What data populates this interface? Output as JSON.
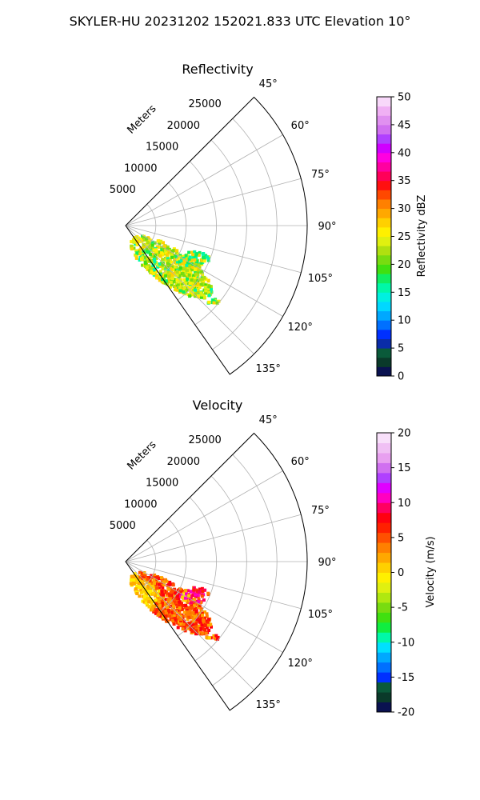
{
  "suptitle": "SKYLER-HU  20231202  152021.833 UTC Elevation 10°",
  "chart_data": [
    {
      "type": "heatmap",
      "projection": "polar-sector",
      "title": "Reflectivity",
      "radial_label": "Meters",
      "radial_ticks": [
        5000,
        10000,
        15000,
        20000,
        25000
      ],
      "radial_range": [
        0,
        30000
      ],
      "angular_ticks": [
        "45°",
        "60°",
        "75°",
        "90°",
        "105°",
        "120°",
        "135°"
      ],
      "angular_range_deg": [
        45,
        145
      ],
      "grid": true,
      "colorbar": {
        "label": "Reflectivity dBZ",
        "range": [
          0,
          50
        ],
        "ticks": [
          0,
          5,
          10,
          15,
          20,
          25,
          30,
          35,
          40,
          45,
          50
        ],
        "colors": [
          "#0a1250",
          "#0a3a2a",
          "#0a5a3a",
          "#0a2ca8",
          "#0030ff",
          "#0070ff",
          "#00a8ff",
          "#00d8ff",
          "#00f0e0",
          "#00f8a8",
          "#10ee60",
          "#40e010",
          "#78dc10",
          "#b0e010",
          "#e0f010",
          "#fff000",
          "#ffd000",
          "#ffa800",
          "#ff8000",
          "#ff4800",
          "#ff1010",
          "#ff0058",
          "#ff00a0",
          "#ff00e0",
          "#d000ff",
          "#b040ff",
          "#d070f0",
          "#e090f0",
          "#f0b0f4",
          "#f8d8fa"
        ]
      },
      "echo_summary": "main cluster about 25–30 dBZ (yellow-green) centered near bearing 112°, range 8–17 km, with scattered weaker cyan/green echoes near bearings 100–105° and 120°"
    },
    {
      "type": "heatmap",
      "projection": "polar-sector",
      "title": "Velocity",
      "radial_label": "Meters",
      "radial_ticks": [
        5000,
        10000,
        15000,
        20000,
        25000
      ],
      "radial_range": [
        0,
        30000
      ],
      "angular_ticks": [
        "45°",
        "60°",
        "75°",
        "90°",
        "105°",
        "120°",
        "135°"
      ],
      "angular_range_deg": [
        45,
        145
      ],
      "grid": true,
      "colorbar": {
        "label": "Velocity (m/s)",
        "range": [
          -20,
          20
        ],
        "ticks": [
          -20,
          -15,
          -10,
          -5,
          0,
          5,
          10,
          15,
          20
        ],
        "colors": [
          "#0a1250",
          "#0a3a2a",
          "#0a5a3a",
          "#0030ff",
          "#0070ff",
          "#00a8ff",
          "#00e0ff",
          "#00f8a8",
          "#10ee40",
          "#40e010",
          "#78dc10",
          "#b0e810",
          "#e0f010",
          "#fff000",
          "#ffd000",
          "#ffa800",
          "#ff8000",
          "#ff5000",
          "#ff2000",
          "#ff0010",
          "#ff0060",
          "#ff00c0",
          "#e000ff",
          "#b040ff",
          "#d070f0",
          "#e8a0f0",
          "#f0c0f4",
          "#f8e0fa"
        ]
      },
      "echo_summary": "cluster mostly +5 to +12 m/s (orange-red), yellow-orange near 0 to +5 m/s along the lower-left edge, small magenta patches near +15 m/s around bearing 100°"
    }
  ]
}
